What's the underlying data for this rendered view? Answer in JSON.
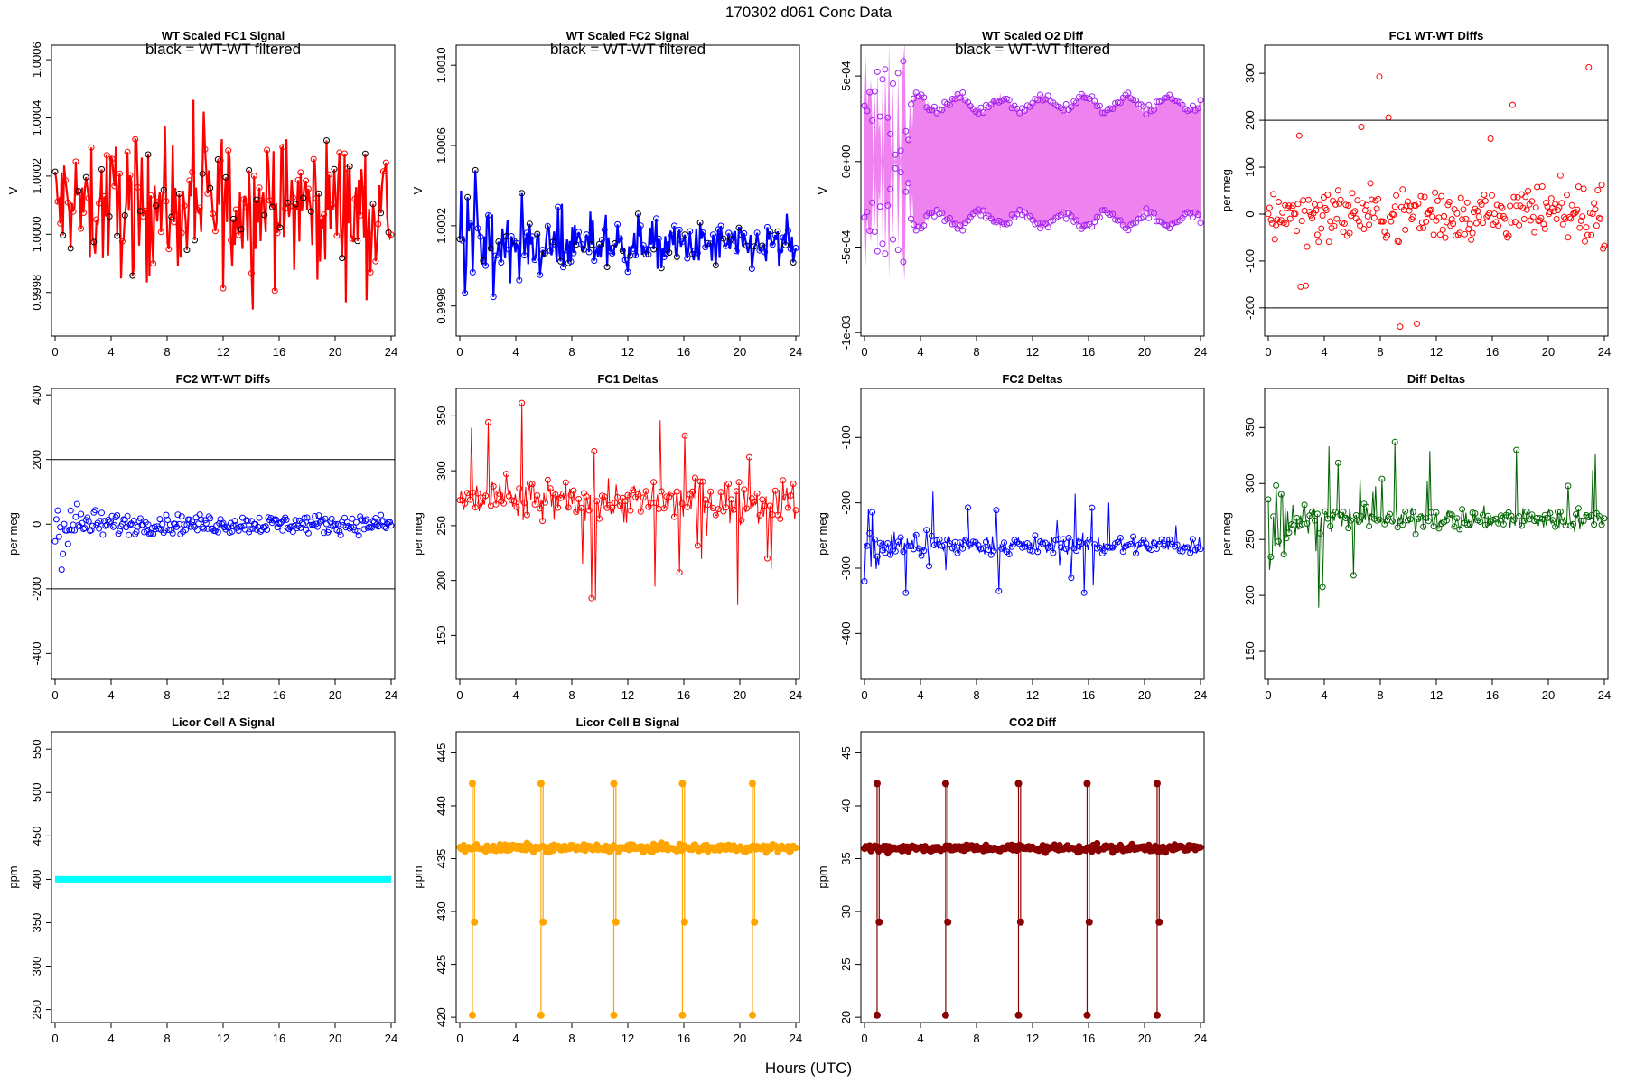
{
  "page_title": "170302   d061   Conc Data",
  "x_axis_label": "Hours (UTC)",
  "chart_data": [
    {
      "id": "p1",
      "type": "line",
      "title": "WT Scaled FC1 Signal",
      "annotation": "black = WT-WT filtered",
      "ylabel": "V",
      "color": "#ff0000",
      "xlim": [
        0,
        24
      ],
      "ylim": [
        0.99965,
        1.00065
      ],
      "yticks": [
        0.9998,
        1.0,
        1.0002,
        1.0004,
        1.0006
      ],
      "ytick_labels": [
        "0.9998",
        "1.0000",
        "1.0002",
        "1.0004",
        "1.0006"
      ],
      "xticks": [
        0,
        4,
        8,
        12,
        16,
        20,
        24
      ],
      "style": "noise",
      "center": 1.0001,
      "spread": 0.00016,
      "spikes": 9e-05
    },
    {
      "id": "p2",
      "type": "line",
      "title": "WT Scaled FC2 Signal",
      "annotation": "black = WT-WT filtered",
      "ylabel": "V",
      "color": "#0000ff",
      "xlim": [
        0,
        24
      ],
      "ylim": [
        0.99965,
        1.0011
      ],
      "yticks": [
        0.9998,
        1.0002,
        1.0006,
        1.001
      ],
      "ytick_labels": [
        "0.9998",
        "1.0002",
        "1.0006",
        "1.0010"
      ],
      "xticks": [
        0,
        4,
        8,
        12,
        16,
        20,
        24
      ],
      "style": "noise_decay",
      "center": 1.0001,
      "spread": 8e-05,
      "spikes": 0.0001
    },
    {
      "id": "p3",
      "type": "area",
      "title": "WT Scaled O2 Diff",
      "annotation": "black = WT-WT filtered",
      "ylabel": "V",
      "color": "#ee82ee",
      "edge_color": "#a020f0",
      "xlim": [
        0,
        24
      ],
      "ylim": [
        -0.00102,
        0.00068
      ],
      "yticks": [
        -0.001,
        -0.0005,
        0,
        0.0005
      ],
      "ytick_labels": [
        "-1e-03",
        "-5e-04",
        "0e+00",
        "5e-04"
      ],
      "xticks": [
        0,
        4,
        8,
        12,
        16,
        20,
        24
      ],
      "style": "band",
      "center": 0.0,
      "spread": 0.00034,
      "spikes": 0.0002
    },
    {
      "id": "p4",
      "type": "scatter",
      "title": "FC1 WT-WT Diffs",
      "ylabel": "per meg",
      "color": "#ff0000",
      "xlim": [
        0,
        24
      ],
      "ylim": [
        -260,
        360
      ],
      "yticks": [
        -200,
        -100,
        0,
        100,
        200,
        300
      ],
      "ytick_labels": [
        "-200",
        "-100",
        "0",
        "100",
        "200",
        "300"
      ],
      "xticks": [
        0,
        4,
        8,
        12,
        16,
        20,
        24
      ],
      "hlines": [
        200,
        -200
      ],
      "style": "scatter",
      "center": 0,
      "spread": 40,
      "spikes": 0
    },
    {
      "id": "p5",
      "type": "scatter",
      "title": "FC2 WT-WT Diffs",
      "ylabel": "per meg",
      "color": "#0000ff",
      "xlim": [
        0,
        24
      ],
      "ylim": [
        -480,
        420
      ],
      "yticks": [
        -400,
        -200,
        0,
        200,
        400
      ],
      "ytick_labels": [
        "-400",
        "-200",
        "0",
        "200",
        "400"
      ],
      "xticks": [
        0,
        4,
        8,
        12,
        16,
        20,
        24
      ],
      "hlines": [
        200,
        -200
      ],
      "style": "scatter_decay",
      "center": 0,
      "spread": 20,
      "spikes": 0
    },
    {
      "id": "p6",
      "type": "line",
      "title": "FC1 Deltas",
      "ylabel": "per meg",
      "color": "#ff0000",
      "xlim": [
        0,
        24
      ],
      "ylim": [
        110,
        375
      ],
      "yticks": [
        150,
        200,
        250,
        300,
        350
      ],
      "ytick_labels": [
        "150",
        "200",
        "250",
        "300",
        "350"
      ],
      "xticks": [
        0,
        4,
        8,
        12,
        16,
        20,
        24
      ],
      "style": "points_line",
      "center": 272,
      "spread": 14,
      "spikes": 60
    },
    {
      "id": "p7",
      "type": "line",
      "title": "FC2 Deltas",
      "ylabel": "per meg",
      "color": "#0000ff",
      "xlim": [
        0,
        24
      ],
      "ylim": [
        -470,
        -25
      ],
      "yticks": [
        -400,
        -300,
        -200,
        -100
      ],
      "ytick_labels": [
        "-400",
        "-300",
        "-200",
        "-100"
      ],
      "xticks": [
        0,
        4,
        8,
        12,
        16,
        20,
        24
      ],
      "style": "points_line_decay",
      "center": -265,
      "spread": 10,
      "spikes": 55
    },
    {
      "id": "p8",
      "type": "line",
      "title": "Diff Deltas",
      "ylabel": "per meg",
      "color": "#006400",
      "xlim": [
        0,
        24
      ],
      "ylim": [
        125,
        385
      ],
      "yticks": [
        150,
        200,
        250,
        300,
        350
      ],
      "ytick_labels": [
        "150",
        "200",
        "250",
        "300",
        "350"
      ],
      "xticks": [
        0,
        4,
        8,
        12,
        16,
        20,
        24
      ],
      "style": "points_line_decay",
      "center": 268,
      "spread": 7,
      "spikes": 55
    },
    {
      "id": "p9",
      "type": "line",
      "title": "Licor Cell A Signal",
      "ylabel": "ppm",
      "color": "#00ffff",
      "xlim": [
        0,
        24
      ],
      "ylim": [
        235,
        570
      ],
      "yticks": [
        250,
        300,
        350,
        400,
        450,
        500,
        550
      ],
      "ytick_labels": [
        "250",
        "300",
        "350",
        "400",
        "450",
        "500",
        "550"
      ],
      "xticks": [
        0,
        4,
        8,
        12,
        16,
        20,
        24
      ],
      "style": "flat",
      "center": 400,
      "spread": 0,
      "spikes": 0
    },
    {
      "id": "p10",
      "type": "line",
      "title": "Licor Cell B Signal",
      "ylabel": "ppm",
      "color": "#ffa500",
      "xlim": [
        0,
        24
      ],
      "ylim": [
        419.5,
        447
      ],
      "yticks": [
        420,
        425,
        430,
        435,
        440,
        445
      ],
      "ytick_labels": [
        "420",
        "425",
        "430",
        "435",
        "440",
        "445"
      ],
      "xticks": [
        0,
        4,
        8,
        12,
        16,
        20,
        24
      ],
      "style": "licor",
      "center": 436,
      "spread": 0.25,
      "spikes": 0,
      "high": 442.1,
      "mid": 429,
      "low": 420.2
    },
    {
      "id": "p11",
      "type": "line",
      "title": "CO2 Diff",
      "ylabel": "ppm",
      "color": "#8b0000",
      "xlim": [
        0,
        24
      ],
      "ylim": [
        19.5,
        47
      ],
      "yticks": [
        20,
        25,
        30,
        35,
        40,
        45
      ],
      "ytick_labels": [
        "20",
        "25",
        "30",
        "35",
        "40",
        "45"
      ],
      "xticks": [
        0,
        4,
        8,
        12,
        16,
        20,
        24
      ],
      "style": "licor",
      "center": 36,
      "spread": 0.25,
      "spikes": 0,
      "high": 42.1,
      "mid": 29,
      "low": 20.2
    }
  ]
}
